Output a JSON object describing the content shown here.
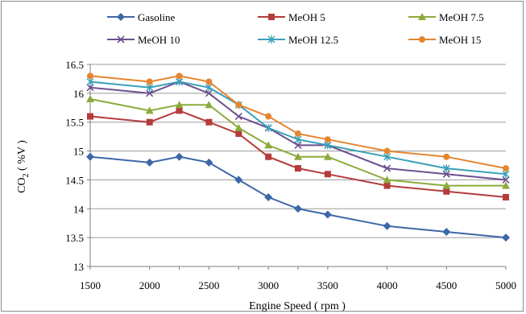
{
  "chart_data": {
    "type": "line",
    "xlabel": "Engine Speed ( rpm )",
    "ylabel_main": "CO",
    "ylabel_sub": "2",
    "ylabel_tail": " ( %V )",
    "x": [
      1500,
      2000,
      2250,
      2500,
      2750,
      3000,
      3250,
      3500,
      4000,
      4500,
      5000
    ],
    "x_ticks": [
      1500,
      2000,
      2500,
      3000,
      3500,
      4000,
      4500,
      5000
    ],
    "ylim": [
      13,
      16.5
    ],
    "y_ticks": [
      13,
      13.5,
      14,
      14.5,
      15,
      15.5,
      16,
      16.5
    ],
    "legend_position": "top",
    "series": [
      {
        "name": "Gasoline",
        "color": "#3d67a8",
        "marker": "diamond",
        "values": [
          14.9,
          14.8,
          14.9,
          14.8,
          14.5,
          14.2,
          14.0,
          13.9,
          13.7,
          13.6,
          13.5
        ]
      },
      {
        "name": "MeOH 5",
        "color": "#b33c3a",
        "marker": "square",
        "values": [
          15.6,
          15.5,
          15.7,
          15.5,
          15.3,
          14.9,
          14.7,
          14.6,
          14.4,
          14.3,
          14.2
        ]
      },
      {
        "name": "MeOH 7.5",
        "color": "#8caa3c",
        "marker": "triangle",
        "values": [
          15.9,
          15.7,
          15.8,
          15.8,
          15.4,
          15.1,
          14.9,
          14.9,
          14.5,
          14.4,
          14.4
        ]
      },
      {
        "name": "MeOH 10",
        "color": "#6d4f8e",
        "marker": "x",
        "values": [
          16.1,
          16.0,
          16.2,
          16.0,
          15.6,
          15.4,
          15.1,
          15.1,
          14.7,
          14.6,
          14.5
        ]
      },
      {
        "name": "MeOH 12.5",
        "color": "#3aa0b8",
        "marker": "star",
        "values": [
          16.2,
          16.1,
          16.2,
          16.1,
          15.8,
          15.4,
          15.2,
          15.1,
          14.9,
          14.7,
          14.6
        ]
      },
      {
        "name": "MeOH 15",
        "color": "#e5852e",
        "marker": "circle",
        "values": [
          16.3,
          16.2,
          16.3,
          16.2,
          15.8,
          15.6,
          15.3,
          15.2,
          15.0,
          14.9,
          14.7
        ]
      }
    ]
  }
}
